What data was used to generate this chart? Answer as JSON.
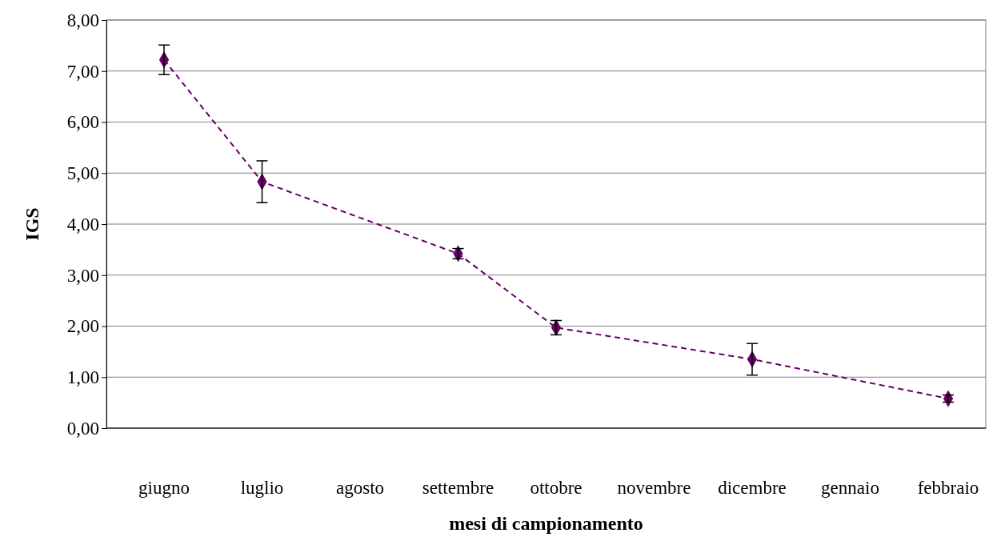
{
  "chart_data": {
    "type": "line",
    "xlabel": "mesi di campionamento",
    "ylabel": "IGS",
    "categories": [
      "giugno",
      "luglio",
      "agosto",
      "settembre",
      "ottobre",
      "novembre",
      "dicembre",
      "gennaio",
      "febbraio"
    ],
    "series": [
      {
        "color": "#660066",
        "values": [
          7.22,
          4.83,
          null,
          3.42,
          1.97,
          null,
          1.35,
          null,
          0.58
        ],
        "errors": [
          0.29,
          0.41,
          null,
          0.1,
          0.14,
          null,
          0.31,
          null,
          0.07
        ]
      }
    ],
    "ylim": [
      0,
      8
    ],
    "yticks": [
      {
        "value": 0,
        "label": "0,00"
      },
      {
        "value": 1,
        "label": "1,00"
      },
      {
        "value": 2,
        "label": "2,00"
      },
      {
        "value": 3,
        "label": "3,00"
      },
      {
        "value": 4,
        "label": "4,00"
      },
      {
        "value": 5,
        "label": "5,00"
      },
      {
        "value": 6,
        "label": "6,00"
      },
      {
        "value": 7,
        "label": "7,00"
      },
      {
        "value": 8,
        "label": "8,00"
      }
    ],
    "grid": "y",
    "marker": "diamond",
    "line_style": "dashed"
  }
}
